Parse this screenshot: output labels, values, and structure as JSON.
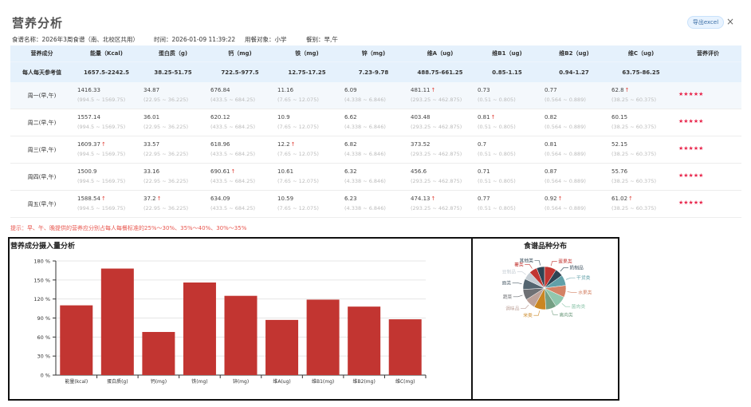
{
  "page": {
    "title": "营养分析",
    "export_label": "导出excel",
    "close_symbol": "×"
  },
  "info": {
    "recipe": "食谱名称：2026年3周食谱（南、北校区共用）",
    "time": "时间：2026-01-09 11:39:22",
    "target": "用餐对象：小学",
    "meals": "餐别：早,午"
  },
  "table": {
    "headers": [
      "营养成分",
      "能量（Kcal)",
      "蛋白质（g)",
      "钙（mg)",
      "铁（mg)",
      "锌（mg)",
      "维A（ug)",
      "维B1（ug)",
      "维B2（ug)",
      "维C（ug)",
      "营养评价"
    ],
    "reference": [
      "每人每天参考值",
      "1657.5-2242.5",
      "38.25-51.75",
      "722.5-977.5",
      "12.75-17.25",
      "7.23-9.78",
      "488.75-661.25",
      "0.85-1.15",
      "0.94-1.27",
      "63.75-86.25",
      ""
    ],
    "rows": [
      {
        "name": "周一(早,午)",
        "cells": [
          {
            "v": "1416.33",
            "up": false,
            "r": "(994.5 ~ 1569.75)"
          },
          {
            "v": "34.87",
            "up": false,
            "r": "(22.95 ~ 36.225)"
          },
          {
            "v": "676.84",
            "up": false,
            "r": "(433.5 ~ 684.25)"
          },
          {
            "v": "11.16",
            "up": false,
            "r": "(7.65 ~ 12.075)"
          },
          {
            "v": "6.09",
            "up": false,
            "r": "(4.338 ~ 6.846)"
          },
          {
            "v": "481.11",
            "up": true,
            "r": "(293.25 ~ 462.875)"
          },
          {
            "v": "0.73",
            "up": false,
            "r": "(0.51 ~ 0.805)"
          },
          {
            "v": "0.77",
            "up": false,
            "r": "(0.564 ~ 0.889)"
          },
          {
            "v": "62.8",
            "up": true,
            "r": "(38.25 ~ 60.375)"
          }
        ],
        "stars": "★★★★★"
      },
      {
        "name": "周二(早,午)",
        "cells": [
          {
            "v": "1557.14",
            "up": false,
            "r": "(994.5 ~ 1569.75)"
          },
          {
            "v": "36.01",
            "up": false,
            "r": "(22.95 ~ 36.225)"
          },
          {
            "v": "620.12",
            "up": false,
            "r": "(433.5 ~ 684.25)"
          },
          {
            "v": "10.9",
            "up": false,
            "r": "(7.65 ~ 12.075)"
          },
          {
            "v": "6.62",
            "up": false,
            "r": "(4.338 ~ 6.846)"
          },
          {
            "v": "403.48",
            "up": false,
            "r": "(293.25 ~ 462.875)"
          },
          {
            "v": "0.81",
            "up": true,
            "r": "(0.51 ~ 0.805)"
          },
          {
            "v": "0.82",
            "up": false,
            "r": "(0.564 ~ 0.889)"
          },
          {
            "v": "60.15",
            "up": false,
            "r": "(38.25 ~ 60.375)"
          }
        ],
        "stars": "★★★★★"
      },
      {
        "name": "周三(早,午)",
        "cells": [
          {
            "v": "1609.37",
            "up": true,
            "r": "(994.5 ~ 1569.75)"
          },
          {
            "v": "33.57",
            "up": false,
            "r": "(22.95 ~ 36.225)"
          },
          {
            "v": "618.96",
            "up": false,
            "r": "(433.5 ~ 684.25)"
          },
          {
            "v": "12.2",
            "up": true,
            "r": "(7.65 ~ 12.075)"
          },
          {
            "v": "6.82",
            "up": false,
            "r": "(4.338 ~ 6.846)"
          },
          {
            "v": "373.52",
            "up": false,
            "r": "(293.25 ~ 462.875)"
          },
          {
            "v": "0.7",
            "up": false,
            "r": "(0.51 ~ 0.805)"
          },
          {
            "v": "0.81",
            "up": false,
            "r": "(0.564 ~ 0.889)"
          },
          {
            "v": "52.15",
            "up": false,
            "r": "(38.25 ~ 60.375)"
          }
        ],
        "stars": "★★★★★"
      },
      {
        "name": "周四(早,午)",
        "cells": [
          {
            "v": "1500.9",
            "up": false,
            "r": "(994.5 ~ 1569.75)"
          },
          {
            "v": "33.16",
            "up": false,
            "r": "(22.95 ~ 36.225)"
          },
          {
            "v": "690.61",
            "up": true,
            "r": "(433.5 ~ 684.25)"
          },
          {
            "v": "10.61",
            "up": false,
            "r": "(7.65 ~ 12.075)"
          },
          {
            "v": "6.32",
            "up": false,
            "r": "(4.338 ~ 6.846)"
          },
          {
            "v": "456.6",
            "up": false,
            "r": "(293.25 ~ 462.875)"
          },
          {
            "v": "0.71",
            "up": false,
            "r": "(0.51 ~ 0.805)"
          },
          {
            "v": "0.87",
            "up": false,
            "r": "(0.564 ~ 0.889)"
          },
          {
            "v": "55.76",
            "up": false,
            "r": "(38.25 ~ 60.375)"
          }
        ],
        "stars": "★★★★★"
      },
      {
        "name": "周五(早,午)",
        "cells": [
          {
            "v": "1588.54",
            "up": true,
            "r": "(994.5 ~ 1569.75)"
          },
          {
            "v": "37.2",
            "up": true,
            "r": "(22.95 ~ 36.225)"
          },
          {
            "v": "634.09",
            "up": false,
            "r": "(433.5 ~ 684.25)"
          },
          {
            "v": "10.59",
            "up": false,
            "r": "(7.65 ~ 12.075)"
          },
          {
            "v": "6.23",
            "up": false,
            "r": "(4.338 ~ 6.846)"
          },
          {
            "v": "474.13",
            "up": true,
            "r": "(293.25 ~ 462.875)"
          },
          {
            "v": "0.77",
            "up": false,
            "r": "(0.51 ~ 0.805)"
          },
          {
            "v": "0.92",
            "up": true,
            "r": "(0.564 ~ 0.889)"
          },
          {
            "v": "61.02",
            "up": true,
            "r": "(38.25 ~ 60.375)"
          }
        ],
        "stars": "★★★★★"
      }
    ],
    "up_symbol": "↑"
  },
  "tip": "提示：早、午、晚提供的营养应分别占每人每餐标准的25%～30%、35%～40%、30%～35%",
  "chart_data": [
    {
      "type": "bar",
      "title": "营养成分摄入量分析",
      "categories": [
        "能量(kcal)",
        "蛋白质(g)",
        "钙(mg)",
        "铁(mg)",
        "锌(mg)",
        "维A(ug)",
        "维B1(mg)",
        "维B2(mg)",
        "维C(mg)"
      ],
      "values": [
        110,
        168,
        68,
        146,
        125,
        87,
        119,
        108,
        88
      ],
      "ylim": [
        0,
        180
      ],
      "yticks": [
        "0 %",
        "30 %",
        "60 %",
        "90 %",
        "120 %",
        "150 %",
        "180 %"
      ],
      "color": "#c23531",
      "grid": true
    },
    {
      "type": "pie",
      "title": "食谱品种分布",
      "slices": [
        {
          "label": "蛋果类",
          "value": 9,
          "color": "#c23531"
        },
        {
          "label": "奶制品",
          "value": 6,
          "color": "#2f4554"
        },
        {
          "label": "干货类",
          "value": 8,
          "color": "#61a0a8"
        },
        {
          "label": "水果类",
          "value": 9,
          "color": "#d48265"
        },
        {
          "label": "菌肉类",
          "value": 9,
          "color": "#91c7ae"
        },
        {
          "label": "禽肉类",
          "value": 8,
          "color": "#749f83"
        },
        {
          "label": "米类",
          "value": 9,
          "color": "#ca8622"
        },
        {
          "label": "调味品",
          "value": 8,
          "color": "#bda29a"
        },
        {
          "label": "蔬菜",
          "value": 8,
          "color": "#6e7074"
        },
        {
          "label": "面类",
          "value": 8,
          "color": "#546570"
        },
        {
          "label": "豆制品",
          "value": 6,
          "color": "#c4ccd3"
        },
        {
          "label": "薯类",
          "value": 6,
          "color": "#c23531"
        },
        {
          "label": "其他类",
          "value": 6,
          "color": "#2f4554"
        }
      ]
    }
  ]
}
